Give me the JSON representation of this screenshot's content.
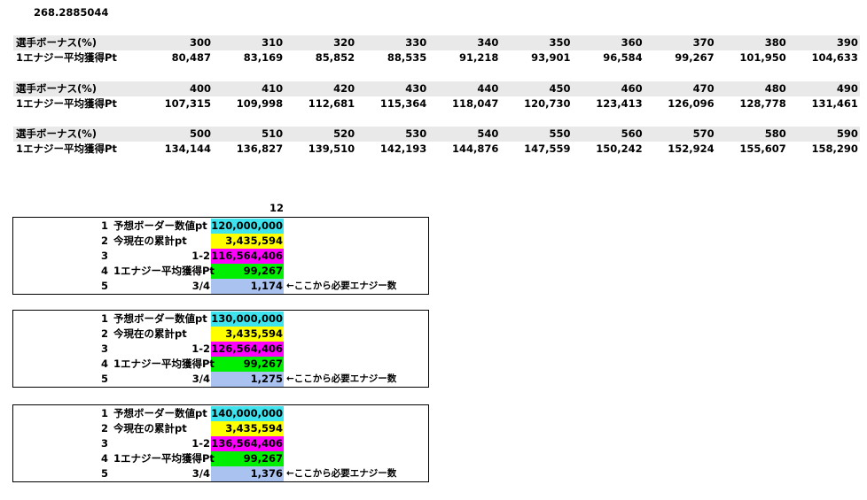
{
  "top_value": "268.2885044",
  "bonus_tables": [
    {
      "row_labels": [
        "選手ボーナス(%)",
        "1エナジー平均獲得Pt"
      ],
      "bonus": [
        "300",
        "310",
        "320",
        "330",
        "340",
        "350",
        "360",
        "370",
        "380",
        "390"
      ],
      "points": [
        "80,487",
        "83,169",
        "85,852",
        "88,535",
        "91,218",
        "93,901",
        "96,584",
        "99,267",
        "101,950",
        "104,633"
      ]
    },
    {
      "row_labels": [
        "選手ボーナス(%)",
        "1エナジー平均獲得Pt"
      ],
      "bonus": [
        "400",
        "410",
        "420",
        "430",
        "440",
        "450",
        "460",
        "470",
        "480",
        "490"
      ],
      "points": [
        "107,315",
        "109,998",
        "112,681",
        "115,364",
        "118,047",
        "120,730",
        "123,413",
        "126,096",
        "128,778",
        "131,461"
      ]
    },
    {
      "row_labels": [
        "選手ボーナス(%)",
        "1エナジー平均獲得Pt"
      ],
      "bonus": [
        "500",
        "510",
        "520",
        "530",
        "540",
        "550",
        "560",
        "570",
        "580",
        "590"
      ],
      "points": [
        "134,144",
        "136,827",
        "139,510",
        "142,193",
        "144,876",
        "147,559",
        "150,242",
        "152,924",
        "155,607",
        "158,290"
      ]
    }
  ],
  "calc_header": "12",
  "calc_blocks": [
    {
      "rows": [
        {
          "num": "1",
          "label": "予想ボーダー数値pt",
          "value": "120,000,000"
        },
        {
          "num": "2",
          "label": "今現在の累計pt",
          "value": "3,435,594"
        },
        {
          "num": "3",
          "formula": "1-2",
          "value": "116,564,406"
        },
        {
          "num": "4",
          "label": "1エナジー平均獲得Pt",
          "value": "99,267"
        },
        {
          "num": "5",
          "formula": "3/4",
          "value": "1,174",
          "note": "←ここから必要エナジー数"
        }
      ]
    },
    {
      "rows": [
        {
          "num": "1",
          "label": "予想ボーダー数値pt",
          "value": "130,000,000"
        },
        {
          "num": "2",
          "label": "今現在の累計pt",
          "value": "3,435,594"
        },
        {
          "num": "3",
          "formula": "1-2",
          "value": "126,564,406"
        },
        {
          "num": "4",
          "label": "1エナジー平均獲得Pt",
          "value": "99,267"
        },
        {
          "num": "5",
          "formula": "3/4",
          "value": "1,275",
          "note": "←ここから必要エナジー数"
        }
      ]
    },
    {
      "rows": [
        {
          "num": "1",
          "label": "予想ボーダー数値pt",
          "value": "140,000,000"
        },
        {
          "num": "2",
          "label": "今現在の累計pt",
          "value": "3,435,594"
        },
        {
          "num": "3",
          "formula": "1-2",
          "value": "136,564,406"
        },
        {
          "num": "4",
          "label": "1エナジー平均獲得Pt",
          "value": "99,267"
        },
        {
          "num": "5",
          "formula": "3/4",
          "value": "1,376",
          "note": "←ここから必要エナジー数"
        }
      ]
    }
  ]
}
